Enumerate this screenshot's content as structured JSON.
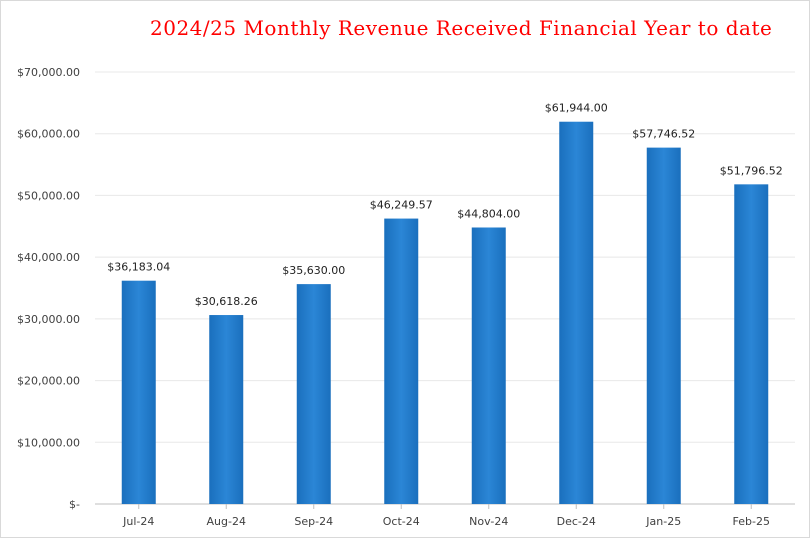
{
  "chart_data": {
    "type": "bar",
    "title": "2024/25  Monthly Revenue Received Financial Year to date",
    "categories": [
      "Jul-24",
      "Aug-24",
      "Sep-24",
      "Oct-24",
      "Nov-24",
      "Dec-24",
      "Jan-25",
      "Feb-25"
    ],
    "values": [
      36183.04,
      30618.26,
      35630.0,
      46249.57,
      44804.0,
      61944.0,
      57746.52,
      51796.52
    ],
    "data_labels": [
      "$36,183.04",
      "$30,618.26",
      "$35,630.00",
      "$46,249.57",
      "$44,804.00",
      "$61,944.00",
      "$57,746.52",
      "$51,796.52"
    ],
    "y_tick_labels": [
      "$-",
      "$10,000.00",
      "$20,000.00",
      "$30,000.00",
      "$40,000.00",
      "$50,000.00",
      "$60,000.00",
      "$70,000.00"
    ],
    "ylim": [
      0,
      70000
    ],
    "xlabel": "",
    "ylabel": "",
    "grid": true,
    "legend": "none",
    "colors": {
      "bar": "#1f7acc",
      "title": "#ff0000"
    }
  }
}
